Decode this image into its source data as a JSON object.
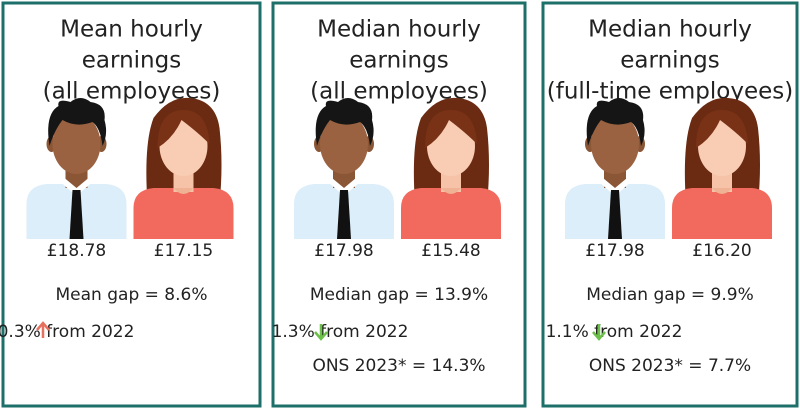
{
  "cards": [
    {
      "title": [
        "Mean hourly",
        "earnings",
        "(all employees)"
      ],
      "male_value": "£18.78",
      "female_value": "£17.15",
      "gap": "Mean gap = 8.6%",
      "change": "0.3% from 2022"
    },
    {
      "title": [
        "Median hourly",
        "earnings",
        "(all employees)"
      ],
      "male_value": "£17.98",
      "female_value": "£15.48",
      "gap": "Median gap = 13.9%",
      "change": "1.3% from 2022",
      "ons": "ONS 2023* = 14.3%"
    },
    {
      "title": [
        "Median hourly",
        "earnings",
        "(full-time employees)"
      ],
      "male_value": "£17.98",
      "female_value": "£16.20",
      "gap": "Median gap = 9.9%",
      "change": "1.1% from 2022",
      "ons": "ONS 2023* = 7.7%"
    }
  ]
}
